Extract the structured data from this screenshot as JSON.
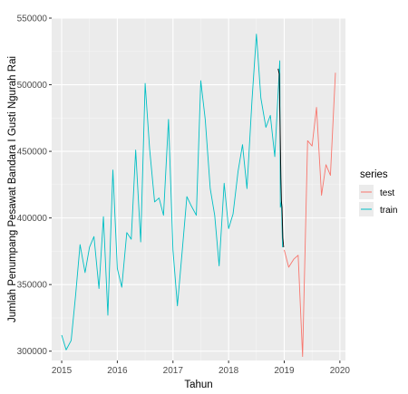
{
  "chart_data": {
    "type": "line",
    "title": "",
    "xlabel": "Tahun",
    "ylabel": "Jumlah Penumpang Pesawat Bandara I Gusti Ngurah Rai",
    "xlim": [
      2014.82,
      2020.1
    ],
    "ylim": [
      293000,
      550000
    ],
    "x_ticks": [
      2015,
      2016,
      2017,
      2018,
      2019,
      2020
    ],
    "x_tick_labels": [
      "2015",
      "2016",
      "2017",
      "2018",
      "2019",
      "2020"
    ],
    "y_ticks": [
      300000,
      350000,
      400000,
      450000,
      500000,
      550000
    ],
    "y_tick_labels": [
      "300000",
      "350000",
      "400000",
      "450000",
      "500000",
      "550000"
    ],
    "grid": true,
    "legend": {
      "title": "series",
      "position": "right"
    },
    "series": [
      {
        "name": "train",
        "color": "#00BFC4",
        "points": [
          [
            2015.0,
            312000
          ],
          [
            2015.08,
            301000
          ],
          [
            2015.17,
            308000
          ],
          [
            2015.25,
            342000
          ],
          [
            2015.33,
            380000
          ],
          [
            2015.42,
            359000
          ],
          [
            2015.5,
            378000
          ],
          [
            2015.58,
            386000
          ],
          [
            2015.67,
            347000
          ],
          [
            2015.75,
            401000
          ],
          [
            2015.83,
            327000
          ],
          [
            2015.92,
            436000
          ],
          [
            2016.0,
            362000
          ],
          [
            2016.08,
            348000
          ],
          [
            2016.17,
            389000
          ],
          [
            2016.25,
            384000
          ],
          [
            2016.33,
            451000
          ],
          [
            2016.42,
            382000
          ],
          [
            2016.5,
            501000
          ],
          [
            2016.58,
            452000
          ],
          [
            2016.67,
            412000
          ],
          [
            2016.75,
            415000
          ],
          [
            2016.83,
            402000
          ],
          [
            2016.92,
            474000
          ],
          [
            2017.0,
            376000
          ],
          [
            2017.08,
            334000
          ],
          [
            2017.17,
            377000
          ],
          [
            2017.25,
            416000
          ],
          [
            2017.33,
            409000
          ],
          [
            2017.42,
            402000
          ],
          [
            2017.5,
            503000
          ],
          [
            2017.58,
            474000
          ],
          [
            2017.67,
            422000
          ],
          [
            2017.75,
            402000
          ],
          [
            2017.83,
            364000
          ],
          [
            2017.92,
            426000
          ],
          [
            2018.0,
            392000
          ],
          [
            2018.08,
            403000
          ],
          [
            2018.17,
            435000
          ],
          [
            2018.25,
            455000
          ],
          [
            2018.33,
            422000
          ],
          [
            2018.42,
            488000
          ],
          [
            2018.5,
            538000
          ],
          [
            2018.58,
            490000
          ],
          [
            2018.67,
            468000
          ],
          [
            2018.75,
            477000
          ],
          [
            2018.83,
            446000
          ],
          [
            2018.92,
            518000
          ],
          [
            2018.93,
            408000
          ],
          [
            2018.95,
            412000
          ],
          [
            2018.97,
            378000
          ]
        ]
      },
      {
        "name": "test",
        "color": "#F8766D",
        "points": [
          [
            2019.0,
            376000
          ],
          [
            2019.08,
            363000
          ],
          [
            2019.17,
            369000
          ],
          [
            2019.25,
            372000
          ],
          [
            2019.33,
            296000
          ],
          [
            2019.42,
            458000
          ],
          [
            2019.5,
            454000
          ],
          [
            2019.58,
            483000
          ],
          [
            2019.67,
            417000
          ],
          [
            2019.75,
            440000
          ],
          [
            2019.83,
            432000
          ],
          [
            2019.92,
            509000
          ]
        ]
      },
      {
        "name": "",
        "color": "#000000",
        "points": [
          [
            2018.89,
            512000
          ],
          [
            2018.91,
            508000
          ],
          [
            2018.925,
            470000
          ],
          [
            2018.94,
            430000
          ],
          [
            2018.95,
            412000
          ],
          [
            2018.96,
            408000
          ],
          [
            2018.975,
            385000
          ],
          [
            2018.99,
            378000
          ]
        ]
      }
    ]
  }
}
